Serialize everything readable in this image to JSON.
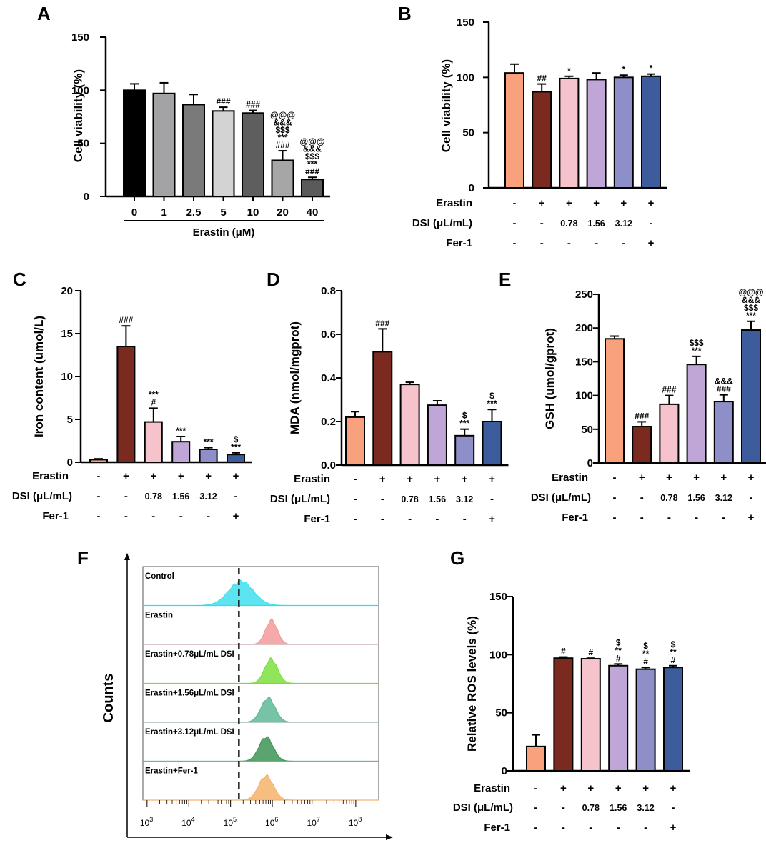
{
  "colors": {
    "salmon": "#F9A07C",
    "maroon": "#7B2A20",
    "pink": "#F6C2CB",
    "lavender": "#BFA6D6",
    "periwinkle": "#8E8FC9",
    "navy": "#3D5C9C",
    "cyan": "#3FE0EE",
    "red": "#F59A9A",
    "lime": "#7CE040",
    "teal": "#5FB997",
    "darkgreen": "#3E9457",
    "orange": "#F6B36B"
  },
  "chart_data": [
    {
      "panel": "A",
      "type": "bar",
      "ylabel": "Cell viability (%)",
      "xlabel": "Erastin (μM)",
      "ylim": [
        0,
        150
      ],
      "yticks": [
        "0",
        "50",
        "100",
        "150"
      ],
      "categories": [
        "0",
        "1",
        "2.5",
        "5",
        "10",
        "20",
        "40"
      ],
      "values": [
        100,
        97,
        86.5,
        80.5,
        78.5,
        34,
        16
      ],
      "errors": [
        6,
        10,
        9.5,
        3.5,
        2.5,
        9,
        2
      ],
      "bar_colors": [
        "#000000",
        "#A3A3A5",
        "#7A7A7B",
        "#D3D3D3",
        "#5E5E5E",
        "#A6A6A6",
        "#5A5A5A"
      ],
      "annotations": [
        [],
        [],
        [],
        [
          "###"
        ],
        [
          "###"
        ],
        [
          "@@@",
          "&&&",
          "$$$",
          "***",
          "###"
        ],
        [
          "@@@",
          "&&&",
          "$$$",
          "***",
          "###"
        ]
      ]
    },
    {
      "panel": "B",
      "type": "bar",
      "ylabel": "Cell viability (%)",
      "ylim": [
        0,
        150
      ],
      "yticks": [
        "0",
        "50",
        "100",
        "150"
      ],
      "values": [
        104,
        87,
        99,
        98,
        100,
        101
      ],
      "errors": [
        8,
        7,
        2,
        6,
        2,
        2
      ],
      "annotations": [
        [],
        [
          "##"
        ],
        [
          "*"
        ],
        [],
        [
          "*"
        ],
        [
          "*"
        ]
      ],
      "treatment_rows": [
        {
          "label": "Erastin",
          "values": [
            "-",
            "+",
            "+",
            "+",
            "+",
            "+"
          ]
        },
        {
          "label": "DSI (μL/mL)",
          "values": [
            "-",
            "-",
            "0.78",
            "1.56",
            "3.12",
            "-"
          ]
        },
        {
          "label": "Fer-1",
          "values": [
            "-",
            "-",
            "-",
            "-",
            "-",
            "+"
          ]
        }
      ]
    },
    {
      "panel": "C",
      "type": "bar",
      "ylabel": "Iron content (umol/L)",
      "ylim": [
        0,
        20
      ],
      "yticks": [
        "0",
        "5",
        "10",
        "15",
        "20"
      ],
      "values": [
        0.3,
        13.5,
        4.7,
        2.4,
        1.5,
        0.9
      ],
      "errors": [
        0.1,
        2.4,
        1.6,
        0.6,
        0.2,
        0.2
      ],
      "annotations": [
        [],
        [
          "###"
        ],
        [
          "***",
          "#"
        ],
        [
          "***"
        ],
        [
          "***"
        ],
        [
          "$",
          "***"
        ]
      ],
      "treatment_rows": [
        {
          "label": "Erastin",
          "values": [
            "-",
            "+",
            "+",
            "+",
            "+",
            "+"
          ]
        },
        {
          "label": "DSI (μL/mL)",
          "values": [
            "-",
            "-",
            "0.78",
            "1.56",
            "3.12",
            "-"
          ]
        },
        {
          "label": "Fer-1",
          "values": [
            "-",
            "-",
            "-",
            "-",
            "-",
            "+"
          ]
        }
      ]
    },
    {
      "panel": "D",
      "type": "bar",
      "ylabel": "MDA (nmol/mgprot)",
      "ylim": [
        0,
        0.8
      ],
      "yticks": [
        "0.0",
        "0.2",
        "0.4",
        "0.6",
        "0.8"
      ],
      "values": [
        0.22,
        0.52,
        0.37,
        0.275,
        0.135,
        0.2
      ],
      "errors": [
        0.025,
        0.105,
        0.01,
        0.02,
        0.03,
        0.055
      ],
      "annotations": [
        [],
        [
          "###"
        ],
        [],
        [],
        [
          "$",
          "***"
        ],
        [
          "$",
          "***"
        ]
      ],
      "treatment_rows": [
        {
          "label": "Erastin",
          "values": [
            "-",
            "+",
            "+",
            "+",
            "+",
            "+"
          ]
        },
        {
          "label": "DSI (μL/mL)",
          "values": [
            "-",
            "-",
            "0.78",
            "1.56",
            "3.12",
            "-"
          ]
        },
        {
          "label": "Fer-1",
          "values": [
            "-",
            "-",
            "-",
            "-",
            "-",
            "+"
          ]
        }
      ]
    },
    {
      "panel": "E",
      "type": "bar",
      "ylabel": "GSH (umol/gprot)",
      "ylim": [
        0,
        250
      ],
      "yticks": [
        "0",
        "50",
        "100",
        "150",
        "200",
        "250"
      ],
      "values": [
        184,
        54,
        87,
        146,
        91,
        197
      ],
      "errors": [
        4,
        7,
        13,
        12,
        10,
        13
      ],
      "annotations": [
        [],
        [
          "###"
        ],
        [
          "###"
        ],
        [
          "$$$",
          "***"
        ],
        [
          "&&&",
          "###"
        ],
        [
          "@@@",
          "&&&",
          "$$$",
          "***"
        ]
      ],
      "treatment_rows": [
        {
          "label": "Erastin",
          "values": [
            "-",
            "+",
            "+",
            "+",
            "+",
            "+"
          ]
        },
        {
          "label": "DSI (μL/mL)",
          "values": [
            "-",
            "-",
            "0.78",
            "1.56",
            "3.12",
            "-"
          ]
        },
        {
          "label": "Fer-1",
          "values": [
            "-",
            "-",
            "-",
            "-",
            "-",
            "+"
          ]
        }
      ]
    },
    {
      "panel": "G",
      "type": "bar",
      "ylabel": "Relative ROS levels (%)",
      "ylim": [
        0,
        150
      ],
      "yticks": [
        "0",
        "50",
        "100",
        "150"
      ],
      "values": [
        21,
        97,
        96.5,
        90.5,
        87.5,
        89
      ],
      "errors": [
        10,
        1,
        0.5,
        1.5,
        1.5,
        1.5
      ],
      "annotations": [
        [],
        [
          "#"
        ],
        [
          "#"
        ],
        [
          "$",
          "**",
          "#"
        ],
        [
          "$",
          "**",
          "#"
        ],
        [
          "$",
          "**",
          "#"
        ]
      ],
      "treatment_rows": [
        {
          "label": "Erastin",
          "values": [
            "-",
            "+",
            "+",
            "+",
            "+",
            "+"
          ]
        },
        {
          "label": "DSI (μL/mL)",
          "values": [
            "-",
            "-",
            "0.78",
            "1.56",
            "3.12",
            "-"
          ]
        },
        {
          "label": "Fer-1",
          "values": [
            "-",
            "-",
            "-",
            "-",
            "-",
            "+"
          ]
        }
      ]
    },
    {
      "panel": "F",
      "type": "area",
      "ylabel": "Counts",
      "xticks": [
        "3",
        "4",
        "5",
        "6",
        "7",
        "8"
      ],
      "xtick_base": "10",
      "dashed_line_log10": 5.2,
      "histograms": [
        {
          "label": "Control",
          "peak_log10": 5.25,
          "width": 0.42,
          "color": "#3FE0EE"
        },
        {
          "label": "Erastin",
          "peak_log10": 5.98,
          "width": 0.2,
          "color": "#F59A9A"
        },
        {
          "label": "Erastin+0.78μL/mL DSI",
          "peak_log10": 5.97,
          "width": 0.22,
          "color": "#7CE040"
        },
        {
          "label": "Erastin+1.56μL/mL DSI",
          "peak_log10": 5.9,
          "width": 0.24,
          "color": "#5FB997"
        },
        {
          "label": "Erastin+3.12μL/mL DSI",
          "peak_log10": 5.85,
          "width": 0.24,
          "color": "#3E9457"
        },
        {
          "label": "Erastin+Fer-1",
          "peak_log10": 5.85,
          "width": 0.25,
          "color": "#F6B36B"
        }
      ]
    }
  ]
}
